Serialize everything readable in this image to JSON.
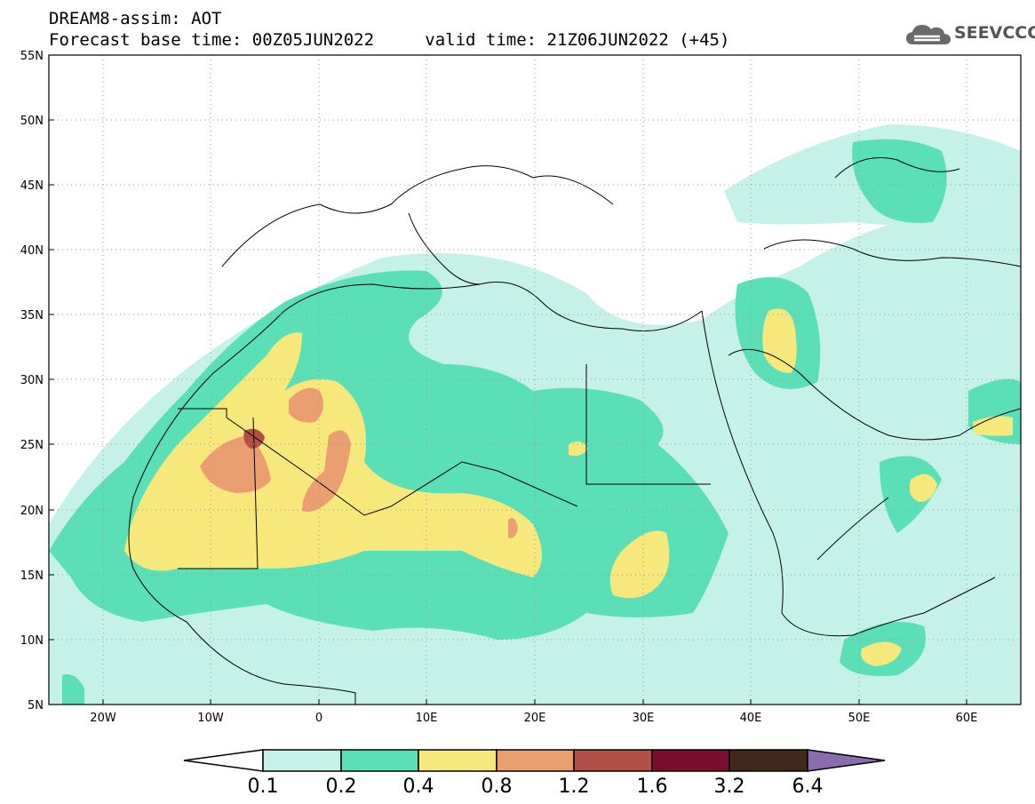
{
  "header": {
    "title": "DREAM8-assim: AOT",
    "base_time_label": "Forecast base time: 00Z05JUN2022",
    "valid_time_label": "valid time: 21Z06JUN2022 (+45)"
  },
  "logo": {
    "text": "SEEVCCC",
    "icon": "cloud-icon"
  },
  "map": {
    "lat_labels": [
      "55N",
      "50N",
      "45N",
      "40N",
      "35N",
      "30N",
      "25N",
      "20N",
      "15N",
      "10N",
      "5N"
    ],
    "lon_labels": [
      "20W",
      "10W",
      "0",
      "10E",
      "20E",
      "30E",
      "40E",
      "50E",
      "60E"
    ]
  },
  "colorbar": {
    "labels": [
      "0.1",
      "0.2",
      "0.4",
      "0.8",
      "1.2",
      "1.6",
      "3.2",
      "6.4"
    ],
    "colors": [
      "#ffffff",
      "#c6f1e8",
      "#5bdfb6",
      "#f7e87c",
      "#eb9f70",
      "#b24f46",
      "#7d0d2f",
      "#41281a",
      "#8a6bb0"
    ]
  }
}
